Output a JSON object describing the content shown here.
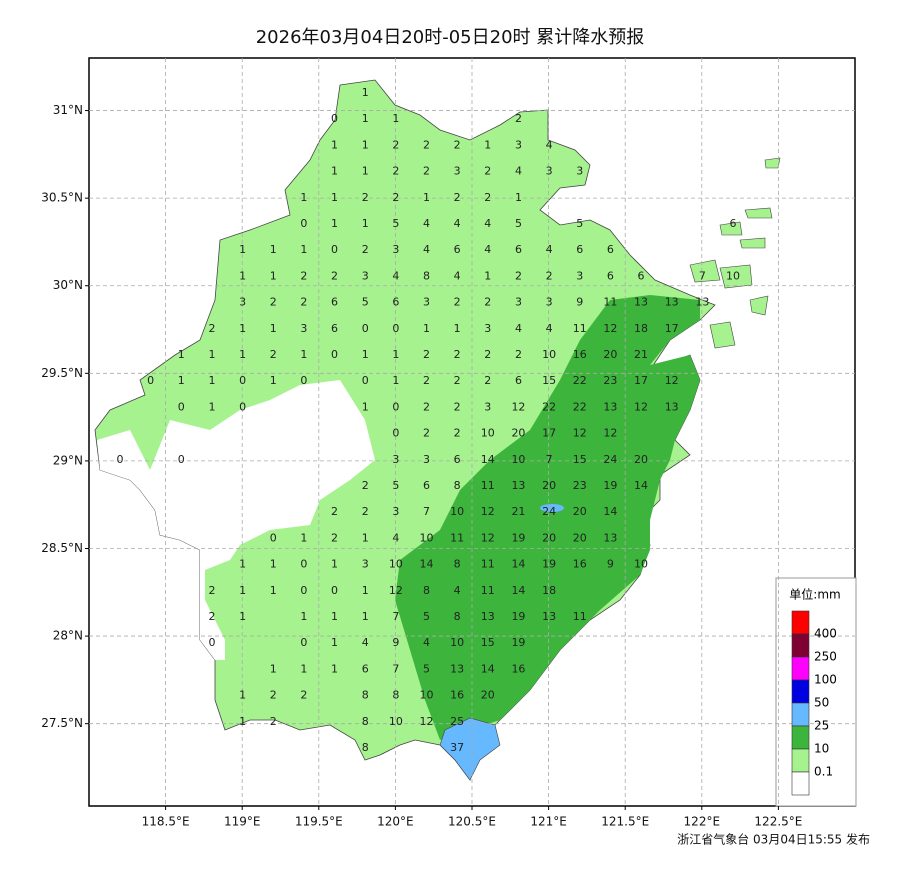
{
  "title": "2026年03月04日20时-05日20时 累计降水预报",
  "map": {
    "xlim": [
      118,
      123
    ],
    "ylim": [
      27.03,
      31.3
    ],
    "grid": true,
    "xticks": [
      {
        "value": 118.5,
        "label": "118.5°E"
      },
      {
        "value": 119,
        "label": "119°E"
      },
      {
        "value": 119.5,
        "label": "119.5°E"
      },
      {
        "value": 120,
        "label": "120°E"
      },
      {
        "value": 120.5,
        "label": "120.5°E"
      },
      {
        "value": 121,
        "label": "121°E"
      },
      {
        "value": 121.5,
        "label": "121.5°E"
      },
      {
        "value": 122,
        "label": "122°E"
      },
      {
        "value": 122.5,
        "label": "122.5°E"
      }
    ],
    "yticks": [
      {
        "value": 31,
        "label": "31°N"
      },
      {
        "value": 30.5,
        "label": "30.5°N"
      },
      {
        "value": 30,
        "label": "30°N"
      },
      {
        "value": 29.5,
        "label": "29.5°N"
      },
      {
        "value": 29,
        "label": "29°N"
      },
      {
        "value": 28.5,
        "label": "28.5°N"
      },
      {
        "value": 28,
        "label": "28°N"
      },
      {
        "value": 27.5,
        "label": "27.5°N"
      }
    ],
    "station_values": [
      [
        null,
        null,
        null,
        null,
        null,
        null,
        null,
        null,
        1,
        null,
        null,
        null,
        null,
        null,
        null,
        null,
        null,
        null,
        null,
        null,
        null
      ],
      [
        null,
        null,
        null,
        null,
        null,
        null,
        null,
        0,
        1,
        1,
        null,
        null,
        null,
        2,
        null,
        null,
        null,
        null,
        null,
        null,
        null
      ],
      [
        null,
        null,
        null,
        null,
        null,
        null,
        null,
        1,
        1,
        2,
        2,
        2,
        1,
        3,
        4,
        null,
        null,
        null,
        null,
        null,
        null
      ],
      [
        null,
        null,
        null,
        null,
        null,
        null,
        null,
        1,
        1,
        2,
        2,
        3,
        2,
        4,
        3,
        3,
        null,
        null,
        null,
        null,
        null
      ],
      [
        null,
        null,
        null,
        null,
        null,
        null,
        1,
        1,
        2,
        2,
        1,
        2,
        2,
        1,
        null,
        null,
        null,
        null,
        null,
        null,
        null
      ],
      [
        null,
        null,
        null,
        null,
        null,
        null,
        0,
        1,
        1,
        5,
        4,
        4,
        4,
        5,
        null,
        5,
        null,
        null,
        null,
        null,
        6
      ],
      [
        null,
        null,
        null,
        null,
        1,
        1,
        1,
        0,
        2,
        3,
        4,
        6,
        4,
        6,
        4,
        6,
        6,
        null,
        null,
        null,
        null
      ],
      [
        null,
        null,
        null,
        null,
        1,
        1,
        2,
        2,
        3,
        4,
        8,
        4,
        1,
        2,
        2,
        3,
        6,
        6,
        null,
        7,
        10
      ],
      [
        null,
        null,
        null,
        null,
        3,
        2,
        2,
        6,
        5,
        6,
        3,
        2,
        2,
        3,
        3,
        9,
        11,
        13,
        13,
        13,
        null
      ],
      [
        null,
        null,
        null,
        2,
        1,
        1,
        3,
        6,
        0,
        0,
        1,
        1,
        3,
        4,
        4,
        11,
        12,
        18,
        17,
        null,
        null
      ],
      [
        null,
        null,
        1,
        1,
        1,
        2,
        1,
        0,
        1,
        1,
        2,
        2,
        2,
        2,
        10,
        16,
        20,
        21,
        null,
        null,
        null
      ],
      [
        null,
        0,
        1,
        1,
        0,
        1,
        0,
        null,
        0,
        1,
        2,
        2,
        2,
        6,
        15,
        22,
        23,
        17,
        12,
        null,
        null
      ],
      [
        null,
        null,
        0,
        1,
        0,
        null,
        null,
        null,
        1,
        0,
        2,
        2,
        3,
        12,
        22,
        22,
        13,
        12,
        13,
        null,
        null
      ],
      [
        null,
        null,
        null,
        null,
        null,
        null,
        null,
        null,
        null,
        0,
        2,
        2,
        10,
        20,
        17,
        12,
        12,
        null,
        null,
        null,
        null
      ],
      [
        0,
        null,
        0,
        null,
        null,
        null,
        null,
        null,
        null,
        3,
        3,
        6,
        14,
        10,
        7,
        15,
        24,
        20,
        null,
        null,
        null
      ],
      [
        null,
        null,
        null,
        null,
        null,
        null,
        null,
        null,
        2,
        5,
        6,
        8,
        11,
        13,
        20,
        23,
        19,
        14,
        null,
        null,
        null
      ],
      [
        null,
        null,
        null,
        null,
        null,
        null,
        null,
        2,
        2,
        3,
        7,
        10,
        12,
        21,
        24,
        20,
        14,
        null,
        null,
        null,
        null
      ],
      [
        null,
        null,
        null,
        null,
        null,
        0,
        1,
        2,
        1,
        4,
        10,
        11,
        12,
        19,
        20,
        20,
        13,
        null,
        null,
        null,
        null
      ],
      [
        null,
        null,
        null,
        null,
        1,
        1,
        0,
        1,
        3,
        10,
        14,
        8,
        11,
        14,
        19,
        16,
        9,
        10,
        null,
        null,
        null
      ],
      [
        null,
        null,
        null,
        2,
        1,
        1,
        0,
        0,
        1,
        12,
        8,
        4,
        11,
        14,
        18,
        null,
        null,
        null,
        null,
        null,
        null
      ],
      [
        null,
        null,
        null,
        2,
        1,
        null,
        1,
        1,
        1,
        7,
        5,
        8,
        13,
        19,
        13,
        11,
        null,
        null,
        null,
        null,
        null
      ],
      [
        null,
        null,
        null,
        0,
        null,
        null,
        0,
        1,
        4,
        9,
        4,
        10,
        15,
        19,
        null,
        null,
        null,
        null,
        null,
        null,
        null
      ],
      [
        null,
        null,
        null,
        null,
        null,
        1,
        1,
        1,
        6,
        7,
        5,
        13,
        14,
        16,
        null,
        null,
        null,
        null,
        null,
        null,
        null
      ],
      [
        null,
        null,
        null,
        null,
        1,
        2,
        2,
        null,
        8,
        8,
        10,
        16,
        20,
        null,
        null,
        null,
        null,
        null,
        null,
        null,
        null
      ],
      [
        null,
        null,
        null,
        null,
        1,
        2,
        null,
        null,
        8,
        10,
        12,
        25,
        null,
        null,
        null,
        null,
        null,
        null,
        null,
        null,
        null
      ],
      [
        null,
        null,
        null,
        null,
        null,
        null,
        null,
        null,
        8,
        null,
        null,
        37,
        null,
        null,
        null,
        null,
        null,
        null,
        null,
        null,
        null
      ]
    ]
  },
  "legend": {
    "title": "单位:mm",
    "levels": [
      400,
      250,
      100,
      50,
      25,
      10,
      0.1
    ],
    "colors": [
      "#ff0000",
      "#7f0033",
      "#ff00ff",
      "#0000e0",
      "#66b8ff",
      "#3db53d",
      "#a6f28f",
      "#ffffff"
    ]
  },
  "footer": "浙江省气象台 03月04日15:55 发布"
}
